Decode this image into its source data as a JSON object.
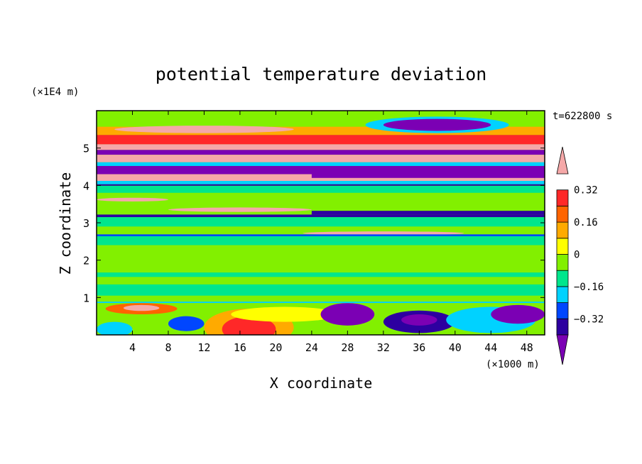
{
  "chart_data": {
    "type": "heatmap",
    "title": "potential temperature deviation",
    "xlabel": "X coordinate",
    "ylabel": "Z coordinate",
    "x_unit": "(×1000 m)",
    "y_unit": "(×1E4 m)",
    "time_label": "t=622800 s",
    "xlim": [
      0,
      50
    ],
    "ylim": [
      0,
      6
    ],
    "x_ticks": [
      4,
      8,
      12,
      16,
      20,
      24,
      28,
      32,
      36,
      40,
      44,
      48
    ],
    "y_ticks": [
      1,
      2,
      3,
      4,
      5
    ],
    "colorbar": {
      "levels": [
        -0.48,
        -0.4,
        -0.32,
        -0.24,
        -0.16,
        -0.08,
        0,
        0.08,
        0.16,
        0.24,
        0.32,
        0.4,
        0.48
      ],
      "tick_labels": [
        "0.32",
        "0.16",
        "0",
        "−0.16",
        "−0.32"
      ],
      "colors": [
        "#7b00b4",
        "#2d00a0",
        "#0046ff",
        "#00d2ff",
        "#00e68c",
        "#82f000",
        "#ffff00",
        "#ffaa00",
        "#ff6400",
        "#ff2828",
        "#f5a8a8"
      ]
    }
  }
}
